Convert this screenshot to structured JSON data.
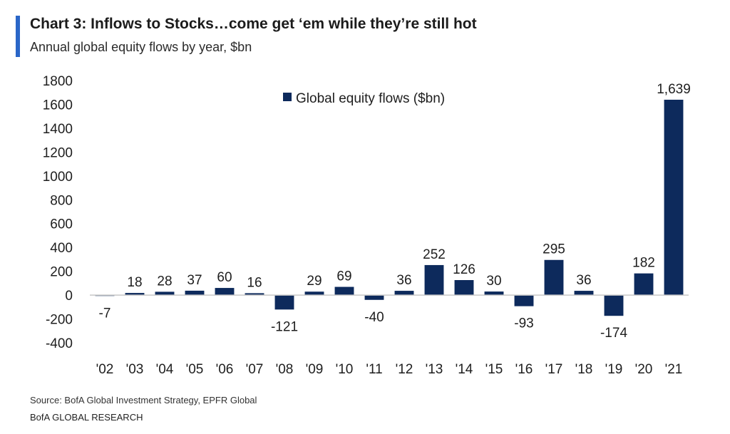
{
  "header": {
    "title": "Chart 3: Inflows to Stocks…come get ‘em while they’re still hot",
    "subtitle": "Annual global equity flows by year, $bn"
  },
  "footer": {
    "source": "Source:  BofA Global Investment Strategy, EPFR Global",
    "brand": "BofA GLOBAL RESEARCH"
  },
  "colors": {
    "bar": "#0d2a5c",
    "accent": "#2a66c8"
  },
  "chart_data": {
    "type": "bar",
    "categories": [
      "'02",
      "'03",
      "'04",
      "'05",
      "'06",
      "'07",
      "'08",
      "'09",
      "'10",
      "'11",
      "'12",
      "'13",
      "'14",
      "'15",
      "'16",
      "'17",
      "'18",
      "'19",
      "'20",
      "'21"
    ],
    "series": [
      {
        "name": "Global equity flows ($bn)",
        "values": [
          -7,
          18,
          28,
          37,
          60,
          16,
          -121,
          29,
          69,
          -40,
          36,
          252,
          126,
          30,
          -93,
          295,
          36,
          -174,
          182,
          1639
        ]
      }
    ],
    "data_labels": [
      "-7",
      "18",
      "28",
      "37",
      "60",
      "16",
      "-121",
      "29",
      "69",
      "-40",
      "36",
      "252",
      "126",
      "30",
      "-93",
      "295",
      "36",
      "-174",
      "182",
      "1,639"
    ],
    "y_ticks": [
      "1800",
      "1600",
      "1400",
      "1200",
      "1000",
      "800",
      "600",
      "400",
      "200",
      "0",
      "-200",
      "-400"
    ],
    "ylim": [
      -400,
      1800
    ],
    "legend_position": "top-center",
    "grid": false
  }
}
